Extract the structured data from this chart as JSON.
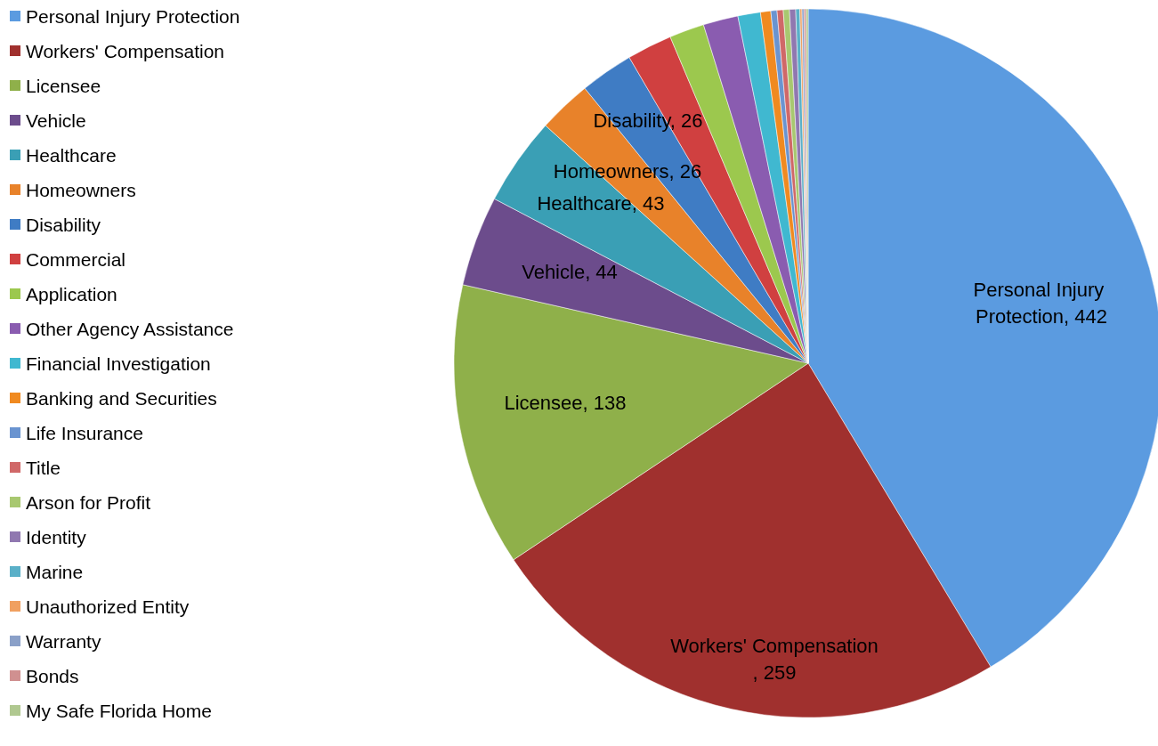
{
  "chart_data": {
    "type": "pie",
    "categories": [
      "Personal Injury Protection",
      "Workers' Compensation",
      "Licensee",
      "Vehicle",
      "Healthcare",
      "Homeowners",
      "Disability",
      "Commercial",
      "Application",
      "Other Agency Assistance",
      "Financial Investigation",
      "Banking and Securities",
      "Life Insurance",
      "Title",
      "Arson for Profit",
      "Identity",
      "Marine",
      "Unauthorized Entity",
      "Warranty",
      "Bonds",
      "My Safe Florida Home"
    ],
    "values": [
      442,
      259,
      138,
      44,
      43,
      26,
      26,
      22,
      17,
      17,
      11,
      5,
      3,
      3,
      3,
      3,
      2,
      1,
      1,
      1,
      1
    ],
    "value_labels": [
      "Personal Injury Protection, 442",
      "Workers' Compensation, 259",
      "Licensee, 138",
      "Vehicle, 44",
      "Healthcare, 43",
      "Homeowners, 26",
      "Disability, 26",
      null,
      null,
      null,
      null,
      null,
      null,
      null,
      null,
      null,
      null,
      null,
      null,
      null,
      null
    ],
    "colors": [
      "#5b9be0",
      "#a0302e",
      "#8fb04a",
      "#6c4c8c",
      "#3a9fb5",
      "#e8822a",
      "#3f7cc4",
      "#d04040",
      "#9cc84e",
      "#8a5cb0",
      "#40b8d0",
      "#f08a20",
      "#6a94d0",
      "#d06868",
      "#a8c870",
      "#9078b0",
      "#5ab0c8",
      "#f0a060",
      "#8aa0c8",
      "#d09090",
      "#b0c890"
    ],
    "legend": "left"
  }
}
